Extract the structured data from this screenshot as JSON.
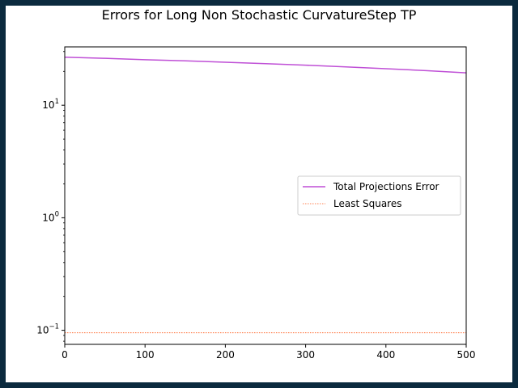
{
  "chart_data": {
    "type": "line",
    "title": "Errors for Long Non Stochastic CurvatureStep TP",
    "xlabel": "",
    "ylabel": "",
    "xlim": [
      0,
      500
    ],
    "ylim": [
      0.075,
      33
    ],
    "yscale": "log",
    "x_ticks": [
      0,
      100,
      200,
      300,
      400,
      500
    ],
    "x_tick_labels": [
      "0",
      "100",
      "200",
      "300",
      "400",
      "500"
    ],
    "y_ticks": [
      0.1,
      1,
      10
    ],
    "y_tick_labels": [
      {
        "base": "10",
        "exp": "−1"
      },
      {
        "base": "10",
        "exp": "0"
      },
      {
        "base": "10",
        "exp": "1"
      }
    ],
    "grid": false,
    "legend_placement": "center-right",
    "series": [
      {
        "name": "Total Projections Error",
        "color": "#bf4fd6",
        "style": "solid",
        "x": [
          0,
          50,
          100,
          150,
          200,
          250,
          300,
          350,
          400,
          450,
          500
        ],
        "y": [
          26.7,
          26.1,
          25.4,
          24.8,
          24.1,
          23.4,
          22.7,
          21.9,
          21.1,
          20.3,
          19.4
        ]
      },
      {
        "name": "Least Squares",
        "color": "#ff5a1a",
        "style": "dotted",
        "x": [
          0,
          500
        ],
        "y": [
          0.095,
          0.095
        ]
      }
    ]
  }
}
